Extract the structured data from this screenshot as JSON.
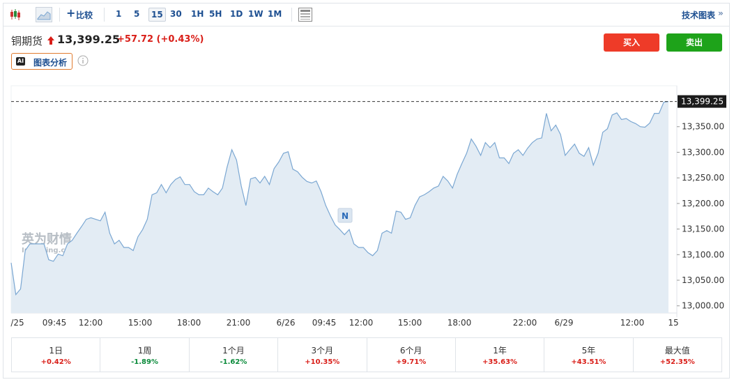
{
  "toolbar": {
    "compare": "比较",
    "intervals": [
      "1",
      "5",
      "15",
      "30",
      "1H",
      "5H",
      "1D",
      "1W",
      "1M"
    ],
    "active_interval": "15",
    "technical": "技术图表"
  },
  "header": {
    "name": "铜期货",
    "price": "13,399.25",
    "change": "+57.72",
    "change_pct": "(+0.43%)",
    "ai_label": "图表分析",
    "buy": "买入",
    "sell": "卖出"
  },
  "chart_data": {
    "type": "area",
    "series": [
      {
        "color": "#7ba7d2",
        "fill": "#e3ecf4",
        "values": [
          13084,
          13022,
          13033,
          13108,
          13121,
          13121,
          13121,
          13121,
          13090,
          13087,
          13101,
          13098,
          13121,
          13128,
          13142,
          13155,
          13169,
          13172,
          13169,
          13166,
          13183,
          13142,
          13121,
          13128,
          13114,
          13114,
          13108,
          13135,
          13149,
          13169,
          13217,
          13221,
          13237,
          13221,
          13237,
          13247,
          13252,
          13237,
          13237,
          13223,
          13217,
          13217,
          13230,
          13223,
          13217,
          13230,
          13271,
          13305,
          13285,
          13234,
          13196,
          13248,
          13251,
          13240,
          13253,
          13237,
          13268,
          13281,
          13298,
          13301,
          13267,
          13262,
          13251,
          13243,
          13240,
          13244,
          13223,
          13196,
          13176,
          13158,
          13149,
          13139,
          13149,
          13121,
          13114,
          13114,
          13104,
          13098,
          13108,
          13142,
          13147,
          13142,
          13185,
          13183,
          13169,
          13172,
          13196,
          13213,
          13217,
          13223,
          13230,
          13234,
          13253,
          13244,
          13230,
          13257,
          13278,
          13298,
          13326,
          13312,
          13294,
          13319,
          13309,
          13319,
          13289,
          13289,
          13278,
          13298,
          13305,
          13294,
          13308,
          13319,
          13326,
          13328,
          13376,
          13342,
          13353,
          13335,
          13294,
          13305,
          13316,
          13298,
          13292,
          13309,
          13275,
          13298,
          13339,
          13346,
          13373,
          13377,
          13364,
          13366,
          13360,
          13356,
          13350,
          13349,
          13357,
          13376,
          13376,
          13398,
          13399.25
        ]
      }
    ],
    "last_price": {
      "value": 13399.25,
      "label": "13,399.25"
    },
    "x_labels": [
      "/25",
      "09:45",
      "12:00",
      "15:00",
      "18:00",
      "21:00",
      "6/26",
      "09:45",
      "12:00",
      "15:00",
      "18:00",
      "22:00",
      "6/29",
      "12:00",
      "15"
    ],
    "ylim": [
      12986,
      13430
    ],
    "yticks": [
      {
        "value": 13000,
        "label": "13,000.00"
      },
      {
        "value": 13050,
        "label": "13,050.00"
      },
      {
        "value": 13100,
        "label": "13,100.00"
      },
      {
        "value": 13150,
        "label": "13,150.00"
      },
      {
        "value": 13200,
        "label": "13,200.00"
      },
      {
        "value": 13250,
        "label": "13,250.00"
      },
      {
        "value": 13300,
        "label": "13,300.00"
      },
      {
        "value": 13350,
        "label": "13,350.00"
      }
    ],
    "watermark": {
      "cn": "英为财情",
      "en": "Investing.com"
    },
    "news_marker": "N"
  },
  "performance": [
    {
      "period": "1日",
      "change": "+0.42%",
      "color": "#d91e18"
    },
    {
      "period": "1周",
      "change": "-1.89%",
      "color": "#0a8a3a"
    },
    {
      "period": "1个月",
      "change": "-1.62%",
      "color": "#0a8a3a"
    },
    {
      "period": "3个月",
      "change": "+10.35%",
      "color": "#d91e18"
    },
    {
      "period": "6个月",
      "change": "+9.71%",
      "color": "#d91e18"
    },
    {
      "period": "1年",
      "change": "+35.63%",
      "color": "#d91e18"
    },
    {
      "period": "5年",
      "change": "+43.51%",
      "color": "#d91e18"
    },
    {
      "period": "最大值",
      "change": "+52.35%",
      "color": "#d91e18"
    }
  ]
}
